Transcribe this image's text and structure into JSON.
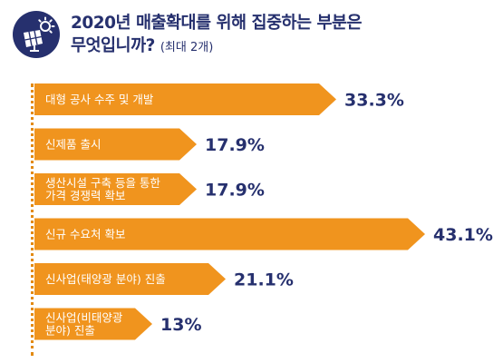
{
  "header": {
    "title_line1": "2020년 매출확대를 위해 집중하는 부분은",
    "title_line2": "무엇입니까?",
    "subtitle": "(최대 2개)",
    "logo_icon": "solar-panel-sun-icon",
    "accent_color": "#26306e"
  },
  "chart_data": {
    "type": "bar",
    "orientation": "horizontal",
    "unit": "%",
    "xlim": [
      0,
      45
    ],
    "bar_color": "#f0941e",
    "value_color": "#26306e",
    "categories": [
      [
        "대형 공사 수주 및 개발"
      ],
      [
        "신제품 출시"
      ],
      [
        "생산시설 구축 등을 통한",
        "가격 경쟁력 확보"
      ],
      [
        "신규 수요처 확보"
      ],
      [
        "신사업(태양광 분야) 진출"
      ],
      [
        "신사업(비태양광",
        "분야) 진출"
      ]
    ],
    "values": [
      33.3,
      17.9,
      17.9,
      43.1,
      21.1,
      13
    ],
    "value_labels": [
      "33.3%",
      "17.9%",
      "17.9%",
      "43.1%",
      "21.1%",
      "13%"
    ]
  }
}
